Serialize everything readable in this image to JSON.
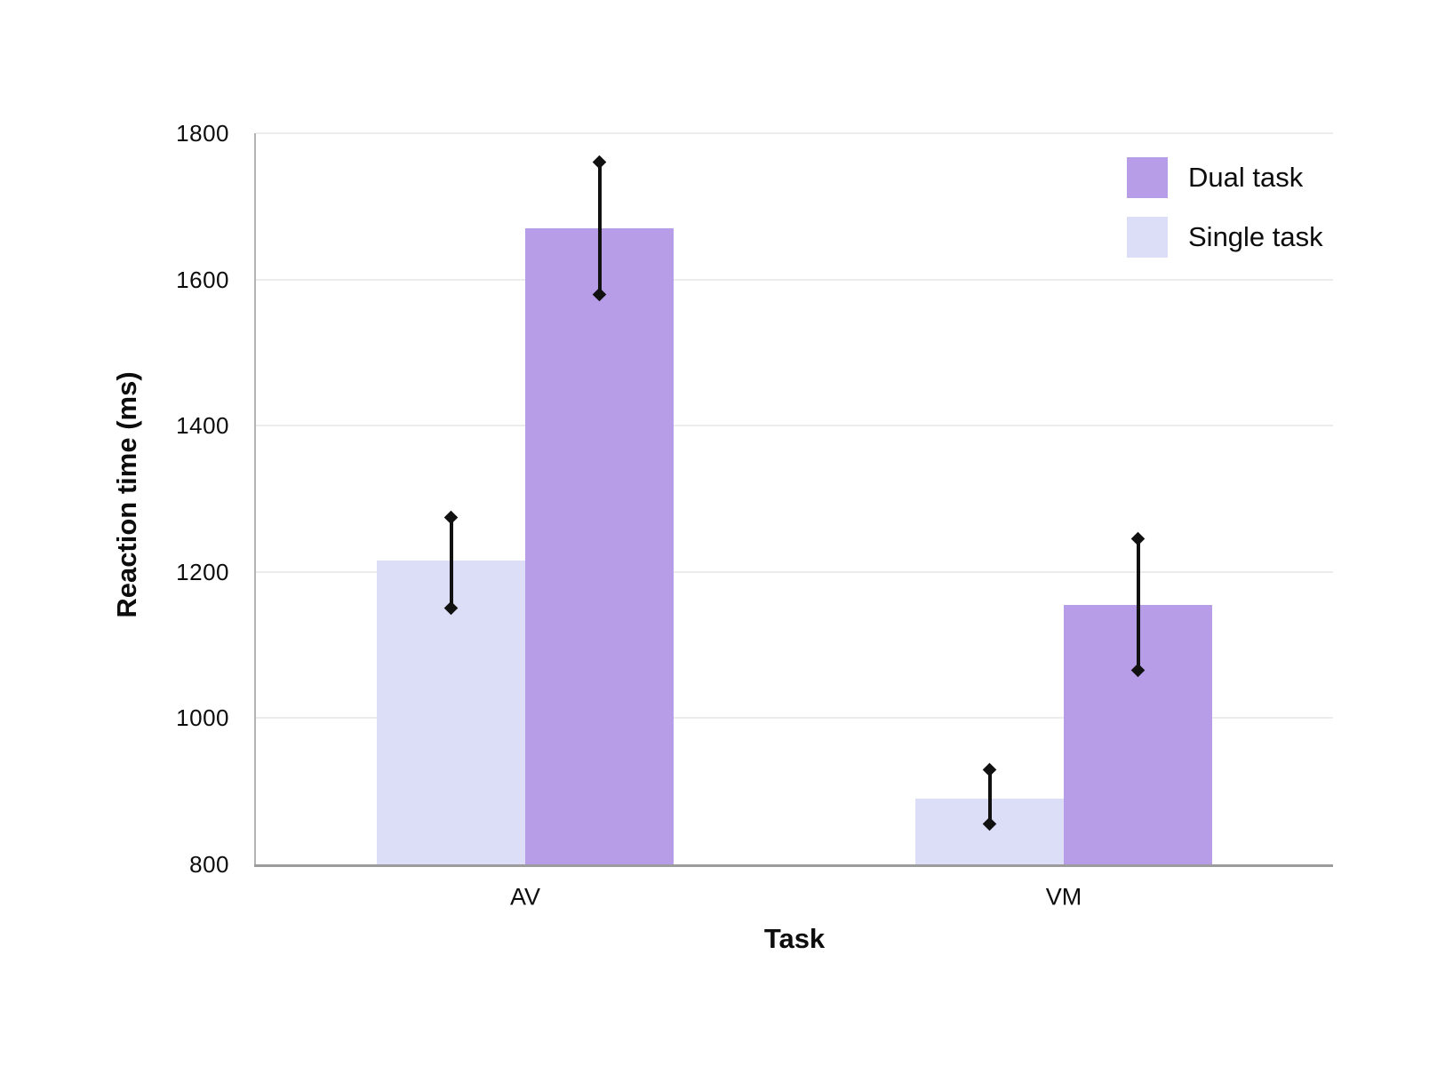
{
  "chart_data": {
    "type": "bar",
    "title": "",
    "xlabel": "Task",
    "ylabel": "Reaction time (ms)",
    "categories": [
      "AV",
      "VM"
    ],
    "series": [
      {
        "name": "Dual task",
        "color": "#b79ce8",
        "values": [
          1670,
          1155
        ],
        "ci_low": [
          1580,
          1065
        ],
        "ci_high": [
          1760,
          1245
        ]
      },
      {
        "name": "Single task",
        "color": "#dcddf6",
        "values": [
          1215,
          890
        ],
        "ci_low": [
          1150,
          855
        ],
        "ci_high": [
          1275,
          930
        ]
      }
    ],
    "ylim": [
      800,
      1800
    ],
    "yticks": [
      800,
      1000,
      1200,
      1400,
      1600,
      1800
    ],
    "grid": "horizontal",
    "legend_position": "top-right",
    "error_bar_style": "line-with-diamond-caps",
    "bar_order_in_group": [
      "Single task",
      "Dual task"
    ]
  },
  "colors": {
    "background": "#ffffff",
    "grid": "#ececec",
    "y_axis": "#b3b3b3",
    "x_axis": "#9c9c9c",
    "error_bar": "#111111",
    "text": "#0d0d0d"
  }
}
